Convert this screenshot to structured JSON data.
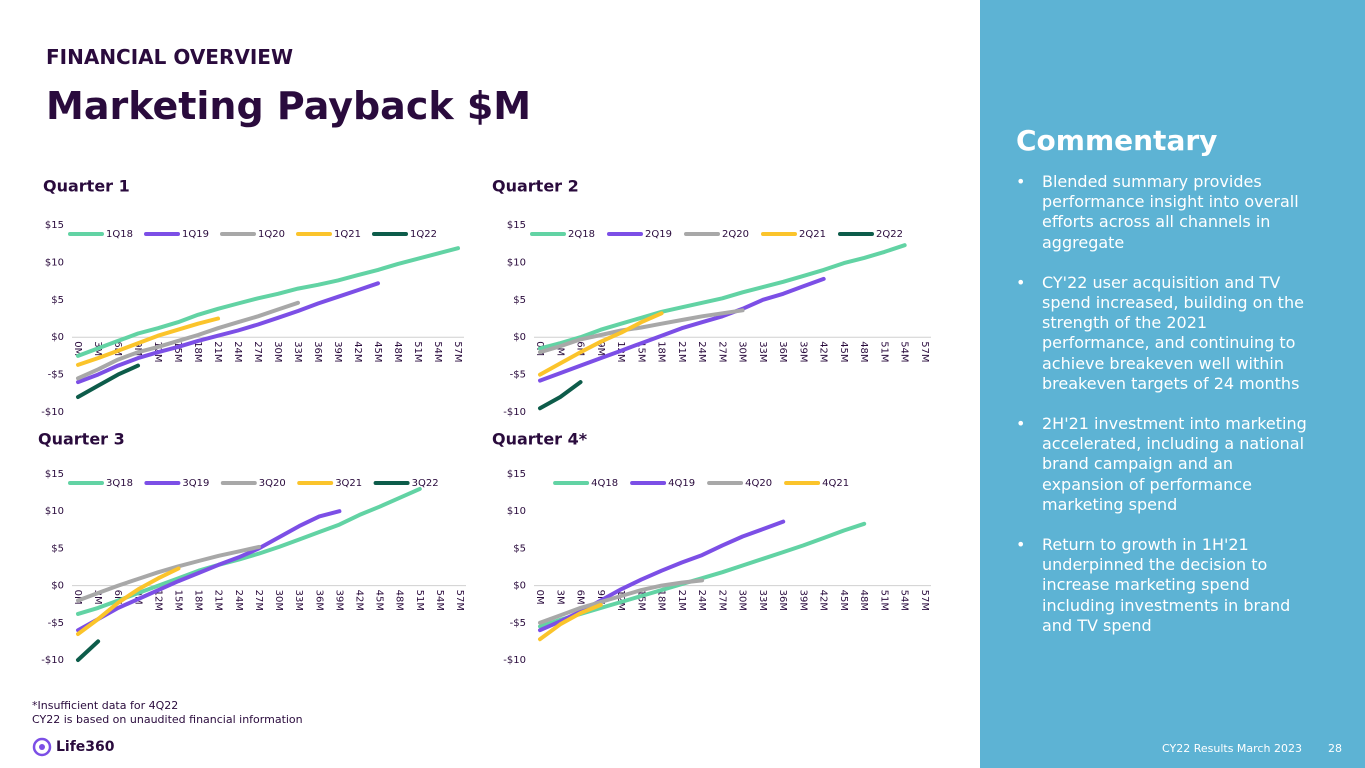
{
  "header": {
    "section": "FINANCIAL OVERVIEW",
    "title": "Marketing Payback $M"
  },
  "chart_data": [
    {
      "type": "line",
      "title": "Quarter 1",
      "categories": [
        "0M",
        "3M",
        "6M",
        "9M",
        "12M",
        "15M",
        "18M",
        "21M",
        "24M",
        "27M",
        "30M",
        "33M",
        "36M",
        "39M",
        "42M",
        "45M",
        "48M",
        "51M",
        "54M",
        "57M"
      ],
      "ylim": [
        -10,
        15
      ],
      "yticks": [
        {
          "value": -10,
          "label": "-$10"
        },
        {
          "value": -5,
          "label": "-$5"
        },
        {
          "value": 0,
          "label": "$0"
        },
        {
          "value": 5,
          "label": "$5"
        },
        {
          "value": 10,
          "label": "$10"
        },
        {
          "value": 15,
          "label": "$15"
        }
      ],
      "grid": false,
      "legend": "top",
      "series": [
        {
          "name": "1Q18",
          "color": "#62d3a4",
          "values": [
            -2.5,
            -1.5,
            -0.5,
            0.5,
            1.2,
            2,
            3,
            3.8,
            4.5,
            5.2,
            5.8,
            6.5,
            7,
            7.6,
            8.3,
            9,
            9.8,
            10.5,
            11.2,
            11.9
          ]
        },
        {
          "name": "1Q19",
          "color": "#7c4fe6",
          "values": [
            -6,
            -5,
            -3.8,
            -2.8,
            -2,
            -1.3,
            -0.5,
            0.2,
            0.9,
            1.7,
            2.6,
            3.5,
            4.5,
            5.4,
            6.3,
            7.2,
            null,
            null,
            null,
            null
          ]
        },
        {
          "name": "1Q20",
          "color": "#a8a8a8",
          "values": [
            -5.5,
            -4.3,
            -3,
            -2,
            -1.3,
            -0.5,
            0.3,
            1.2,
            2,
            2.8,
            3.7,
            4.6,
            null,
            null,
            null,
            null,
            null,
            null,
            null,
            null
          ]
        },
        {
          "name": "1Q21",
          "color": "#fbc42b",
          "values": [
            -3.7,
            -2.8,
            -1.8,
            -0.8,
            0.2,
            1,
            1.8,
            2.5,
            null,
            null,
            null,
            null,
            null,
            null,
            null,
            null,
            null,
            null,
            null,
            null
          ]
        },
        {
          "name": "1Q22",
          "color": "#0d5c4a",
          "values": [
            -8,
            -6.5,
            -5,
            -3.8,
            null,
            null,
            null,
            null,
            null,
            null,
            null,
            null,
            null,
            null,
            null,
            null,
            null,
            null,
            null,
            null
          ]
        }
      ]
    },
    {
      "type": "line",
      "title": "Quarter 2",
      "categories": [
        "0M",
        "3M",
        "6M",
        "9M",
        "12M",
        "15M",
        "18M",
        "21M",
        "24M",
        "27M",
        "30M",
        "33M",
        "36M",
        "39M",
        "42M",
        "45M",
        "48M",
        "51M",
        "54M",
        "57M"
      ],
      "ylim": [
        -10,
        15
      ],
      "yticks": [
        {
          "value": -10,
          "label": "-$10"
        },
        {
          "value": -5,
          "label": "-$5"
        },
        {
          "value": 0,
          "label": "$0"
        },
        {
          "value": 5,
          "label": "$5"
        },
        {
          "value": 10,
          "label": "$10"
        },
        {
          "value": 15,
          "label": "$15"
        }
      ],
      "grid": false,
      "legend": "top",
      "series": [
        {
          "name": "2Q18",
          "color": "#62d3a4",
          "values": [
            -1.5,
            -0.8,
            0,
            1,
            1.8,
            2.6,
            3.4,
            4,
            4.6,
            5.2,
            6,
            6.7,
            7.4,
            8.2,
            9,
            9.9,
            10.6,
            11.4,
            12.3,
            null
          ]
        },
        {
          "name": "2Q19",
          "color": "#7c4fe6",
          "values": [
            -5.8,
            -4.8,
            -3.8,
            -2.8,
            -1.8,
            -0.8,
            0.2,
            1.2,
            2,
            2.8,
            3.8,
            5,
            5.8,
            6.8,
            7.8,
            null,
            null,
            null,
            null,
            null
          ]
        },
        {
          "name": "2Q20",
          "color": "#a8a8a8",
          "values": [
            -2,
            -1.2,
            -0.3,
            0.3,
            0.9,
            1.3,
            1.8,
            2.3,
            2.8,
            3.2,
            3.6,
            null,
            null,
            null,
            null,
            null,
            null,
            null,
            null,
            null
          ]
        },
        {
          "name": "2Q21",
          "color": "#fbc42b",
          "values": [
            -5,
            -3.5,
            -2,
            -0.6,
            0.6,
            2,
            3.2,
            null,
            null,
            null,
            null,
            null,
            null,
            null,
            null,
            null,
            null,
            null,
            null,
            null
          ]
        },
        {
          "name": "2Q22",
          "color": "#0d5c4a",
          "values": [
            -9.5,
            -8,
            -6,
            null,
            null,
            null,
            null,
            null,
            null,
            null,
            null,
            null,
            null,
            null,
            null,
            null,
            null,
            null,
            null,
            null
          ]
        }
      ]
    },
    {
      "type": "line",
      "title": "Quarter 3",
      "categories": [
        "0M",
        "3M",
        "6M",
        "9M",
        "12M",
        "15M",
        "18M",
        "21M",
        "24M",
        "27M",
        "30M",
        "33M",
        "36M",
        "39M",
        "42M",
        "45M",
        "48M",
        "51M",
        "54M",
        "57M"
      ],
      "ylim": [
        -10,
        15
      ],
      "yticks": [
        {
          "value": -10,
          "label": "-$10"
        },
        {
          "value": -5,
          "label": "-$5"
        },
        {
          "value": 0,
          "label": "$0"
        },
        {
          "value": 5,
          "label": "$5"
        },
        {
          "value": 10,
          "label": "$10"
        },
        {
          "value": 15,
          "label": "$15"
        }
      ],
      "grid": false,
      "legend": "top",
      "series": [
        {
          "name": "3Q18",
          "color": "#62d3a4",
          "values": [
            -3.8,
            -3,
            -2,
            -1,
            0,
            1,
            2,
            2.8,
            3.5,
            4.3,
            5.2,
            6.2,
            7.2,
            8.2,
            9.5,
            10.6,
            11.8,
            13,
            null,
            null
          ]
        },
        {
          "name": "3Q19",
          "color": "#7c4fe6",
          "values": [
            -6,
            -4.5,
            -3,
            -1.8,
            -0.6,
            0.6,
            1.7,
            2.8,
            3.8,
            5,
            6.5,
            8,
            9.3,
            10,
            null,
            null,
            null,
            null,
            null,
            null
          ]
        },
        {
          "name": "3Q20",
          "color": "#a8a8a8",
          "values": [
            -2,
            -1,
            0,
            0.9,
            1.8,
            2.6,
            3.3,
            4,
            4.6,
            5.2,
            null,
            null,
            null,
            null,
            null,
            null,
            null,
            null,
            null,
            null
          ]
        },
        {
          "name": "3Q21",
          "color": "#fbc42b",
          "values": [
            -6.5,
            -4.5,
            -2.3,
            -0.5,
            1,
            2.3,
            null,
            null,
            null,
            null,
            null,
            null,
            null,
            null,
            null,
            null,
            null,
            null,
            null,
            null
          ]
        },
        {
          "name": "3Q22",
          "color": "#0d5c4a",
          "values": [
            -10,
            -7.5,
            null,
            null,
            null,
            null,
            null,
            null,
            null,
            null,
            null,
            null,
            null,
            null,
            null,
            null,
            null,
            null,
            null,
            null
          ]
        }
      ]
    },
    {
      "type": "line",
      "title": "Quarter 4*",
      "categories": [
        "0M",
        "3M",
        "6M",
        "9M",
        "12M",
        "15M",
        "18M",
        "21M",
        "24M",
        "27M",
        "30M",
        "33M",
        "36M",
        "39M",
        "42M",
        "45M",
        "48M",
        "51M",
        "54M",
        "57M"
      ],
      "ylim": [
        -10,
        15
      ],
      "yticks": [
        {
          "value": -10,
          "label": "-$10"
        },
        {
          "value": -5,
          "label": "-$5"
        },
        {
          "value": 0,
          "label": "$0"
        },
        {
          "value": 5,
          "label": "$5"
        },
        {
          "value": 10,
          "label": "$10"
        },
        {
          "value": 15,
          "label": "$15"
        }
      ],
      "grid": false,
      "legend": "top",
      "series": [
        {
          "name": "4Q18",
          "color": "#62d3a4",
          "values": [
            -5.5,
            -4.6,
            -3.8,
            -3,
            -2.2,
            -1.4,
            -0.6,
            0.2,
            1,
            1.8,
            2.7,
            3.6,
            4.5,
            5.4,
            6.4,
            7.4,
            8.3,
            null,
            null,
            null
          ]
        },
        {
          "name": "4Q19",
          "color": "#7c4fe6",
          "values": [
            -6,
            -4.8,
            -3.5,
            -2,
            -0.5,
            0.8,
            2,
            3.1,
            4.1,
            5.4,
            6.6,
            7.6,
            8.6,
            null,
            null,
            null,
            null,
            null,
            null,
            null
          ]
        },
        {
          "name": "4Q20",
          "color": "#a8a8a8",
          "values": [
            -5,
            -4,
            -3,
            -2.2,
            -1.4,
            -0.6,
            0,
            0.4,
            0.7,
            null,
            null,
            null,
            null,
            null,
            null,
            null,
            null,
            null,
            null,
            null
          ]
        },
        {
          "name": "4Q21",
          "color": "#fbc42b",
          "values": [
            -7.2,
            -5.2,
            -3.7,
            -2.6,
            null,
            null,
            null,
            null,
            null,
            null,
            null,
            null,
            null,
            null,
            null,
            null,
            null,
            null,
            null,
            null
          ]
        }
      ]
    }
  ],
  "footnotes": [
    "*Insufficient data for 4Q22",
    "CY22 is based on unaudited financial information"
  ],
  "logo": "Life360",
  "commentary": {
    "title": "Commentary",
    "bullets": [
      "Blended summary provides performance insight into overall efforts across all channels in aggregate",
      "CY'22 user acquisition and TV spend increased, building on the strength of the 2021 performance, and continuing to achieve breakeven well within breakeven targets of 24 months",
      "2H'21 investment into marketing accelerated, including a national brand campaign and an expansion of performance marketing spend",
      "Return to growth in 1H'21 underpinned the decision to increase marketing spend including investments in brand and TV spend"
    ]
  },
  "footer": {
    "text": "CY22 Results March 2023",
    "page": "28"
  }
}
